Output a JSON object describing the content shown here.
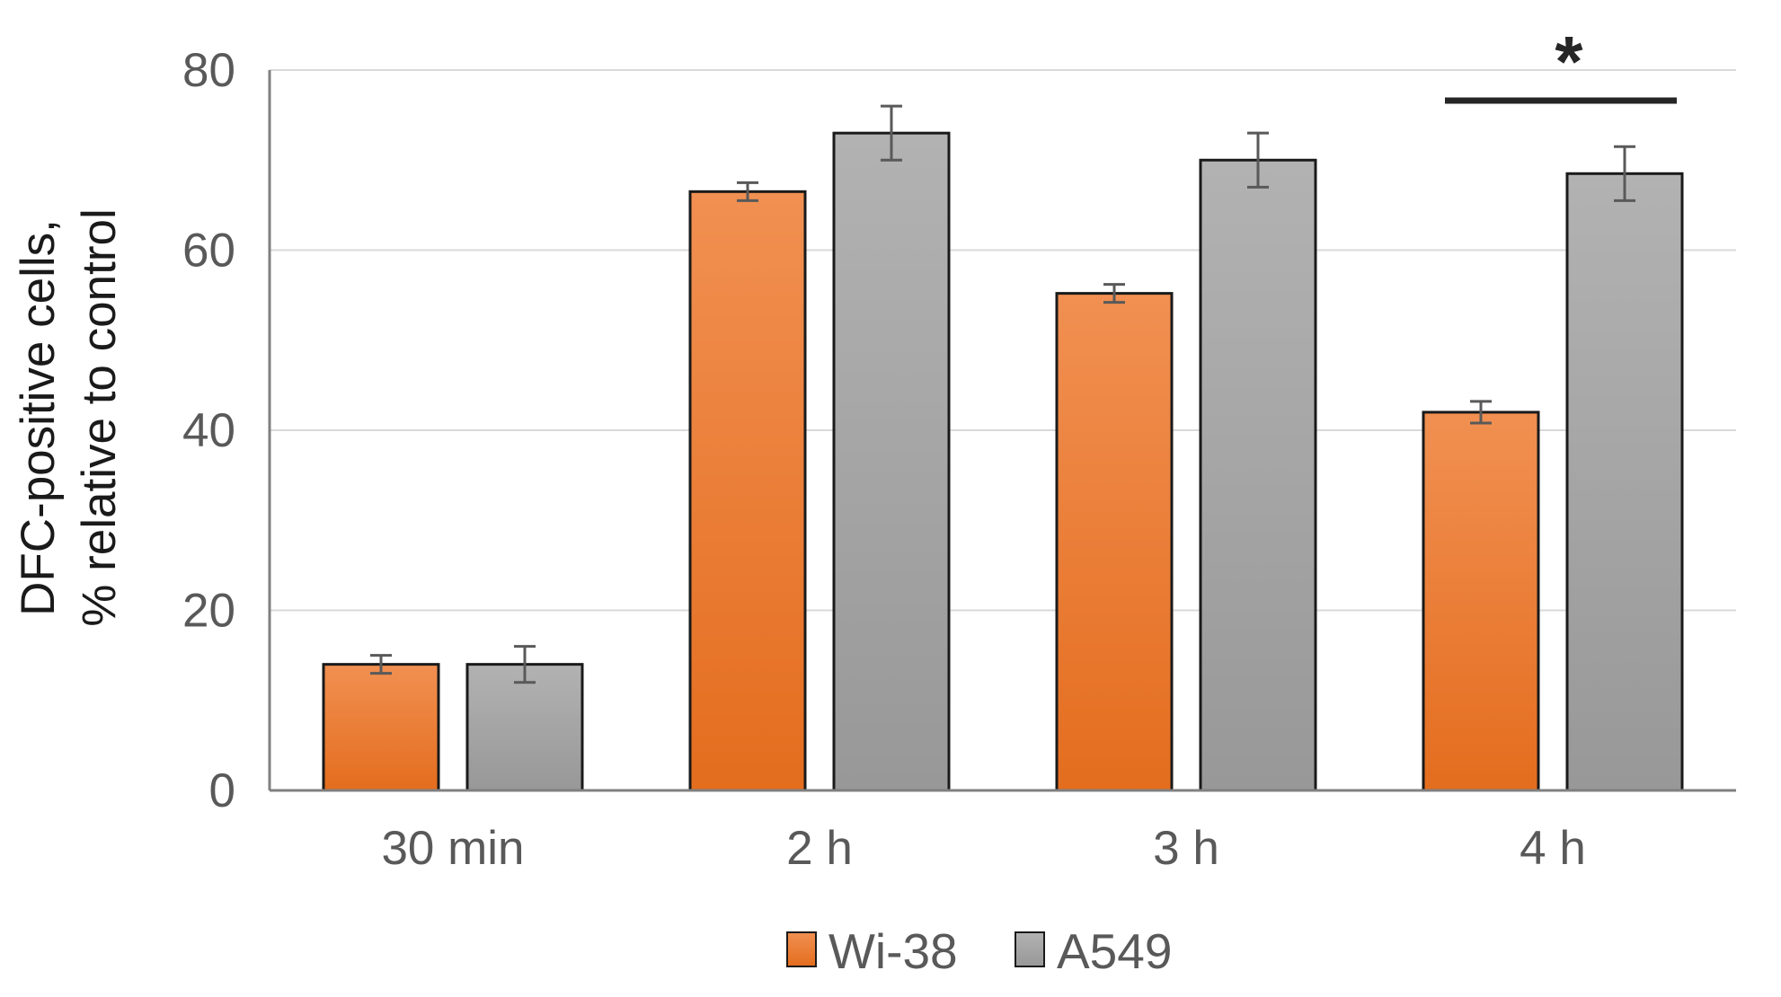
{
  "chart_data": {
    "type": "bar",
    "title": "",
    "xlabel": "",
    "ylabel_lines": [
      "DFC-positive cells,",
      "% relative to control"
    ],
    "categories": [
      "30 min",
      "2 h",
      "3 h",
      "4 h"
    ],
    "ylim": [
      0,
      80
    ],
    "yticks": [
      0,
      20,
      40,
      60,
      80
    ],
    "grid": true,
    "legend_position": "bottom",
    "series": [
      {
        "name": "Wi-38",
        "color": "#ED7D31",
        "values": [
          14,
          66.5,
          55.2,
          42
        ],
        "errors": [
          1,
          1,
          1,
          1.2
        ]
      },
      {
        "name": "A549",
        "color": "#A5A5A5",
        "values": [
          14,
          73,
          70,
          68.5
        ],
        "errors": [
          2,
          3,
          3,
          3
        ]
      }
    ],
    "annotations": [
      {
        "text": "*",
        "category": "4 h",
        "type": "significance-bracket"
      }
    ]
  }
}
